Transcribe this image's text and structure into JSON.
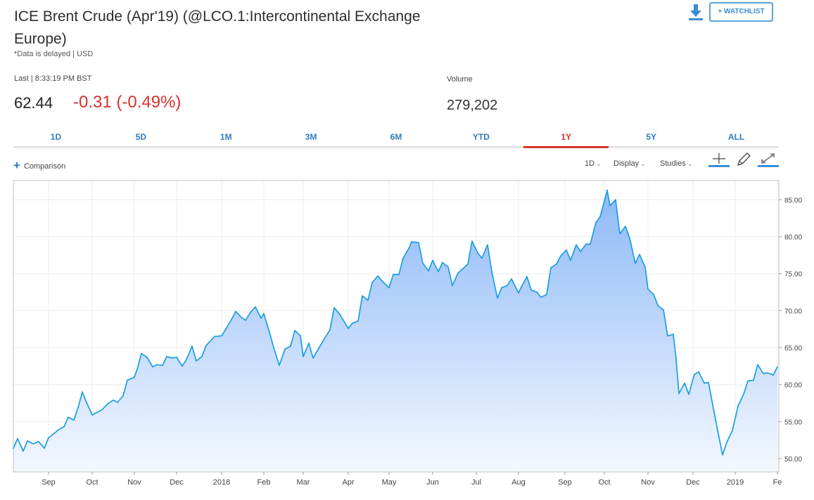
{
  "header": {
    "title": "ICE Brent Crude (Apr'19) (@LCO.1:Intercontinental Exchange Europe)",
    "delayed_note": "*Data is delayed | USD",
    "last_label": "Last | 8:33:19 PM BST",
    "price": "62.44",
    "change": "-0.31 (-0.49%)",
    "volume_label": "Volume",
    "volume_value": "279,202",
    "watchlist_label": "+ WATCHLIST",
    "download_icon": "download-icon"
  },
  "tabs": [
    {
      "label": "1D"
    },
    {
      "label": "5D"
    },
    {
      "label": "1M"
    },
    {
      "label": "3M"
    },
    {
      "label": "6M"
    },
    {
      "label": "YTD"
    },
    {
      "label": "1Y",
      "active": true
    },
    {
      "label": "5Y"
    },
    {
      "label": "ALL"
    }
  ],
  "toolbar": {
    "comparison_label": "Comparison",
    "interval_label": "1D",
    "display_label": "Display",
    "studies_label": "Studies",
    "icons": [
      "crosshair-icon",
      "pencil-icon",
      "fullscreen-icon"
    ]
  },
  "colors": {
    "line": "#1a9ee0",
    "fill_top": "#8db9f7",
    "fill_bottom": "#f4f8ff",
    "negative": "#d7322b",
    "link": "#2f7ec0"
  },
  "chart_data": {
    "type": "area",
    "title": "",
    "xlabel": "",
    "ylabel": "",
    "ylim": [
      48.2,
      87.6
    ],
    "y_ticks": [
      "50.00",
      "55.00",
      "60.00",
      "65.00",
      "70.00",
      "75.00",
      "80.00",
      "85.00"
    ],
    "y_axis_side": "right",
    "grid": true,
    "x_ticks": [
      {
        "label": "Sep",
        "date": "2017-09-01"
      },
      {
        "label": "Oct",
        "date": "2017-10-02"
      },
      {
        "label": "Nov",
        "date": "2017-11-01"
      },
      {
        "label": "Dec",
        "date": "2017-12-01"
      },
      {
        "label": "2018",
        "date": "2018-01-02"
      },
      {
        "label": "Feb",
        "date": "2018-02-01"
      },
      {
        "label": "Mar",
        "date": "2018-03-01"
      },
      {
        "label": "Apr",
        "date": "2018-04-02"
      },
      {
        "label": "May",
        "date": "2018-05-01"
      },
      {
        "label": "Jun",
        "date": "2018-06-01"
      },
      {
        "label": "Jul",
        "date": "2018-07-02"
      },
      {
        "label": "Aug",
        "date": "2018-08-01"
      },
      {
        "label": "Sep",
        "date": "2018-09-03"
      },
      {
        "label": "Oct",
        "date": "2018-10-01"
      },
      {
        "label": "Nov",
        "date": "2018-11-01"
      },
      {
        "label": "Dec",
        "date": "2018-12-03"
      },
      {
        "label": "2019",
        "date": "2019-01-02"
      },
      {
        "label": "Fe",
        "date": "2019-02-01"
      }
    ],
    "x_range": [
      "2017-08-07",
      "2019-02-02"
    ],
    "series": [
      {
        "points": [
          [
            "2017-08-07",
            51.4
          ],
          [
            "2017-08-10",
            52.7
          ],
          [
            "2017-08-14",
            51.0
          ],
          [
            "2017-08-17",
            52.4
          ],
          [
            "2017-08-21",
            52.0
          ],
          [
            "2017-08-25",
            52.3
          ],
          [
            "2017-08-29",
            51.4
          ],
          [
            "2017-09-01",
            52.8
          ],
          [
            "2017-09-05",
            53.4
          ],
          [
            "2017-09-08",
            53.9
          ],
          [
            "2017-09-12",
            54.3
          ],
          [
            "2017-09-15",
            55.6
          ],
          [
            "2017-09-19",
            55.2
          ],
          [
            "2017-09-22",
            56.9
          ],
          [
            "2017-09-25",
            59.0
          ],
          [
            "2017-09-28",
            57.6
          ],
          [
            "2017-10-02",
            55.9
          ],
          [
            "2017-10-05",
            56.2
          ],
          [
            "2017-10-09",
            56.6
          ],
          [
            "2017-10-13",
            57.4
          ],
          [
            "2017-10-17",
            57.9
          ],
          [
            "2017-10-20",
            57.6
          ],
          [
            "2017-10-24",
            58.5
          ],
          [
            "2017-10-27",
            60.6
          ],
          [
            "2017-11-01",
            61.0
          ],
          [
            "2017-11-03",
            62.1
          ],
          [
            "2017-11-06",
            64.2
          ],
          [
            "2017-11-10",
            63.7
          ],
          [
            "2017-11-14",
            62.4
          ],
          [
            "2017-11-17",
            62.7
          ],
          [
            "2017-11-21",
            62.6
          ],
          [
            "2017-11-24",
            63.8
          ],
          [
            "2017-11-28",
            63.6
          ],
          [
            "2017-12-01",
            63.7
          ],
          [
            "2017-12-05",
            62.5
          ],
          [
            "2017-12-08",
            63.4
          ],
          [
            "2017-12-12",
            65.2
          ],
          [
            "2017-12-15",
            63.2
          ],
          [
            "2017-12-19",
            63.8
          ],
          [
            "2017-12-22",
            65.3
          ],
          [
            "2017-12-28",
            66.5
          ],
          [
            "2018-01-02",
            66.6
          ],
          [
            "2018-01-05",
            67.5
          ],
          [
            "2018-01-09",
            68.8
          ],
          [
            "2018-01-12",
            69.9
          ],
          [
            "2018-01-16",
            69.1
          ],
          [
            "2018-01-19",
            68.7
          ],
          [
            "2018-01-23",
            69.9
          ],
          [
            "2018-01-26",
            70.5
          ],
          [
            "2018-01-30",
            69.0
          ],
          [
            "2018-02-01",
            69.6
          ],
          [
            "2018-02-05",
            67.1
          ],
          [
            "2018-02-08",
            65.0
          ],
          [
            "2018-02-12",
            62.6
          ],
          [
            "2018-02-16",
            64.8
          ],
          [
            "2018-02-20",
            65.2
          ],
          [
            "2018-02-23",
            67.3
          ],
          [
            "2018-02-27",
            66.6
          ],
          [
            "2018-03-01",
            63.8
          ],
          [
            "2018-03-05",
            65.6
          ],
          [
            "2018-03-08",
            63.6
          ],
          [
            "2018-03-12",
            64.9
          ],
          [
            "2018-03-16",
            66.2
          ],
          [
            "2018-03-20",
            67.4
          ],
          [
            "2018-03-23",
            70.4
          ],
          [
            "2018-03-27",
            69.5
          ],
          [
            "2018-04-02",
            67.6
          ],
          [
            "2018-04-05",
            68.3
          ],
          [
            "2018-04-09",
            68.6
          ],
          [
            "2018-04-12",
            72.0
          ],
          [
            "2018-04-16",
            71.4
          ],
          [
            "2018-04-19",
            73.8
          ],
          [
            "2018-04-23",
            74.7
          ],
          [
            "2018-04-26",
            74.0
          ],
          [
            "2018-05-01",
            73.1
          ],
          [
            "2018-05-04",
            74.9
          ],
          [
            "2018-05-08",
            74.9
          ],
          [
            "2018-05-11",
            77.1
          ],
          [
            "2018-05-15",
            78.4
          ],
          [
            "2018-05-17",
            79.3
          ],
          [
            "2018-05-22",
            79.2
          ],
          [
            "2018-05-25",
            76.4
          ],
          [
            "2018-05-29",
            75.4
          ],
          [
            "2018-06-01",
            76.8
          ],
          [
            "2018-06-05",
            75.3
          ],
          [
            "2018-06-08",
            76.5
          ],
          [
            "2018-06-12",
            75.9
          ],
          [
            "2018-06-15",
            73.4
          ],
          [
            "2018-06-19",
            75.1
          ],
          [
            "2018-06-22",
            75.6
          ],
          [
            "2018-06-26",
            76.3
          ],
          [
            "2018-06-29",
            79.4
          ],
          [
            "2018-07-03",
            77.8
          ],
          [
            "2018-07-06",
            77.1
          ],
          [
            "2018-07-10",
            78.9
          ],
          [
            "2018-07-13",
            75.3
          ],
          [
            "2018-07-17",
            71.7
          ],
          [
            "2018-07-20",
            73.1
          ],
          [
            "2018-07-24",
            73.4
          ],
          [
            "2018-07-27",
            74.3
          ],
          [
            "2018-08-01",
            72.4
          ],
          [
            "2018-08-03",
            73.2
          ],
          [
            "2018-08-07",
            74.6
          ],
          [
            "2018-08-10",
            72.8
          ],
          [
            "2018-08-14",
            72.5
          ],
          [
            "2018-08-17",
            71.8
          ],
          [
            "2018-08-21",
            72.2
          ],
          [
            "2018-08-24",
            75.8
          ],
          [
            "2018-08-28",
            76.3
          ],
          [
            "2018-08-31",
            77.4
          ],
          [
            "2018-09-04",
            78.2
          ],
          [
            "2018-09-07",
            76.8
          ],
          [
            "2018-09-11",
            78.9
          ],
          [
            "2018-09-14",
            78.0
          ],
          [
            "2018-09-18",
            79.0
          ],
          [
            "2018-09-21",
            79.0
          ],
          [
            "2018-09-25",
            81.9
          ],
          [
            "2018-09-28",
            82.7
          ],
          [
            "2018-10-01",
            84.8
          ],
          [
            "2018-10-03",
            86.3
          ],
          [
            "2018-10-05",
            84.2
          ],
          [
            "2018-10-09",
            85.0
          ],
          [
            "2018-10-12",
            80.4
          ],
          [
            "2018-10-16",
            81.4
          ],
          [
            "2018-10-19",
            79.8
          ],
          [
            "2018-10-23",
            76.4
          ],
          [
            "2018-10-26",
            77.6
          ],
          [
            "2018-10-30",
            75.9
          ],
          [
            "2018-11-01",
            72.9
          ],
          [
            "2018-11-05",
            72.2
          ],
          [
            "2018-11-08",
            70.7
          ],
          [
            "2018-11-12",
            70.1
          ],
          [
            "2018-11-15",
            66.6
          ],
          [
            "2018-11-19",
            66.8
          ],
          [
            "2018-11-21",
            63.5
          ],
          [
            "2018-11-23",
            58.8
          ],
          [
            "2018-11-27",
            60.2
          ],
          [
            "2018-11-30",
            58.7
          ],
          [
            "2018-12-04",
            61.4
          ],
          [
            "2018-12-07",
            61.7
          ],
          [
            "2018-12-11",
            60.2
          ],
          [
            "2018-12-14",
            60.3
          ],
          [
            "2018-12-18",
            56.3
          ],
          [
            "2018-12-20",
            54.3
          ],
          [
            "2018-12-24",
            50.5
          ],
          [
            "2018-12-27",
            52.2
          ],
          [
            "2018-12-31",
            53.8
          ],
          [
            "2019-01-04",
            57.1
          ],
          [
            "2019-01-08",
            58.7
          ],
          [
            "2019-01-11",
            60.5
          ],
          [
            "2019-01-15",
            60.6
          ],
          [
            "2019-01-18",
            62.7
          ],
          [
            "2019-01-22",
            61.5
          ],
          [
            "2019-01-25",
            61.6
          ],
          [
            "2019-01-29",
            61.3
          ],
          [
            "2019-02-01",
            62.4
          ]
        ]
      }
    ]
  }
}
